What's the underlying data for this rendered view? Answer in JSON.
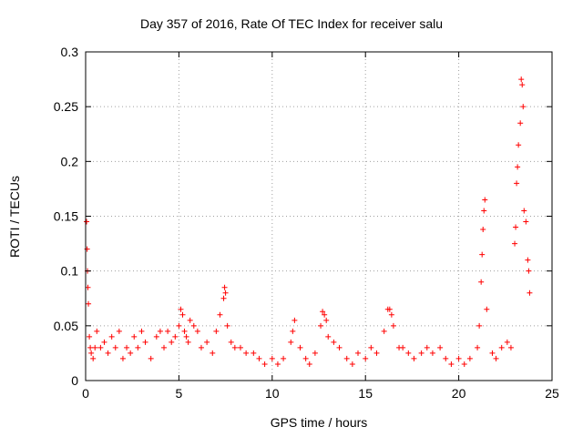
{
  "chart_data": {
    "type": "scatter",
    "title": "Day 357 of 2016, Rate Of TEC Index for receiver salu",
    "xlabel": "GPS time / hours",
    "ylabel": "ROTI / TECUs",
    "xlim": [
      0,
      25
    ],
    "ylim": [
      0,
      0.3
    ],
    "xticks": [
      0,
      5,
      10,
      15,
      20,
      25
    ],
    "yticks": [
      0,
      0.05,
      0.1,
      0.15,
      0.2,
      0.25,
      0.3
    ],
    "xtick_labels": [
      "0",
      "5",
      "10",
      "15",
      "20",
      "25"
    ],
    "ytick_labels": [
      "0",
      "0.05",
      "0.1",
      "0.15",
      "0.2",
      "0.25",
      "0.3"
    ],
    "grid": true,
    "marker": "+",
    "color": "#ff0000",
    "series": [
      {
        "name": "ROTI",
        "x": [
          0.05,
          0.08,
          0.1,
          0.12,
          0.15,
          0.2,
          0.25,
          0.3,
          0.4,
          0.5,
          0.6,
          0.8,
          1.0,
          1.2,
          1.4,
          1.6,
          1.8,
          2.0,
          2.2,
          2.4,
          2.6,
          2.8,
          3.0,
          3.2,
          3.5,
          3.8,
          4.0,
          4.2,
          4.4,
          4.6,
          4.8,
          5.0,
          5.1,
          5.2,
          5.3,
          5.4,
          5.5,
          5.6,
          5.8,
          6.0,
          6.2,
          6.5,
          6.8,
          7.0,
          7.2,
          7.4,
          7.45,
          7.5,
          7.6,
          7.8,
          8.0,
          8.3,
          8.6,
          9.0,
          9.3,
          9.6,
          10.0,
          10.3,
          10.6,
          11.0,
          11.1,
          11.2,
          11.5,
          11.8,
          12.0,
          12.3,
          12.6,
          12.7,
          12.8,
          12.9,
          13.0,
          13.3,
          13.6,
          14.0,
          14.3,
          14.6,
          15.0,
          15.3,
          15.6,
          16.0,
          16.2,
          16.3,
          16.4,
          16.5,
          16.8,
          17.0,
          17.3,
          17.6,
          18.0,
          18.3,
          18.6,
          19.0,
          19.3,
          19.6,
          20.0,
          20.3,
          20.6,
          21.0,
          21.1,
          21.2,
          21.25,
          21.3,
          21.35,
          21.4,
          21.5,
          21.8,
          22.0,
          22.3,
          22.6,
          22.8,
          23.0,
          23.05,
          23.1,
          23.15,
          23.2,
          23.3,
          23.35,
          23.4,
          23.45,
          23.5,
          23.6,
          23.7,
          23.75,
          23.8
        ],
        "y": [
          0.145,
          0.12,
          0.1,
          0.085,
          0.07,
          0.04,
          0.03,
          0.025,
          0.02,
          0.03,
          0.045,
          0.03,
          0.035,
          0.025,
          0.04,
          0.03,
          0.045,
          0.02,
          0.03,
          0.025,
          0.04,
          0.03,
          0.045,
          0.035,
          0.02,
          0.04,
          0.045,
          0.03,
          0.045,
          0.035,
          0.04,
          0.05,
          0.065,
          0.06,
          0.045,
          0.04,
          0.035,
          0.055,
          0.05,
          0.045,
          0.03,
          0.035,
          0.025,
          0.045,
          0.06,
          0.075,
          0.085,
          0.08,
          0.05,
          0.035,
          0.03,
          0.03,
          0.025,
          0.025,
          0.02,
          0.015,
          0.02,
          0.015,
          0.02,
          0.035,
          0.045,
          0.055,
          0.03,
          0.02,
          0.015,
          0.025,
          0.05,
          0.063,
          0.06,
          0.055,
          0.04,
          0.035,
          0.03,
          0.02,
          0.015,
          0.025,
          0.02,
          0.03,
          0.025,
          0.045,
          0.065,
          0.065,
          0.06,
          0.05,
          0.03,
          0.03,
          0.025,
          0.02,
          0.025,
          0.03,
          0.025,
          0.03,
          0.02,
          0.015,
          0.02,
          0.015,
          0.02,
          0.03,
          0.05,
          0.09,
          0.115,
          0.138,
          0.155,
          0.165,
          0.065,
          0.025,
          0.02,
          0.03,
          0.035,
          0.03,
          0.125,
          0.14,
          0.18,
          0.195,
          0.215,
          0.235,
          0.275,
          0.27,
          0.25,
          0.155,
          0.145,
          0.11,
          0.1,
          0.08
        ]
      }
    ]
  }
}
